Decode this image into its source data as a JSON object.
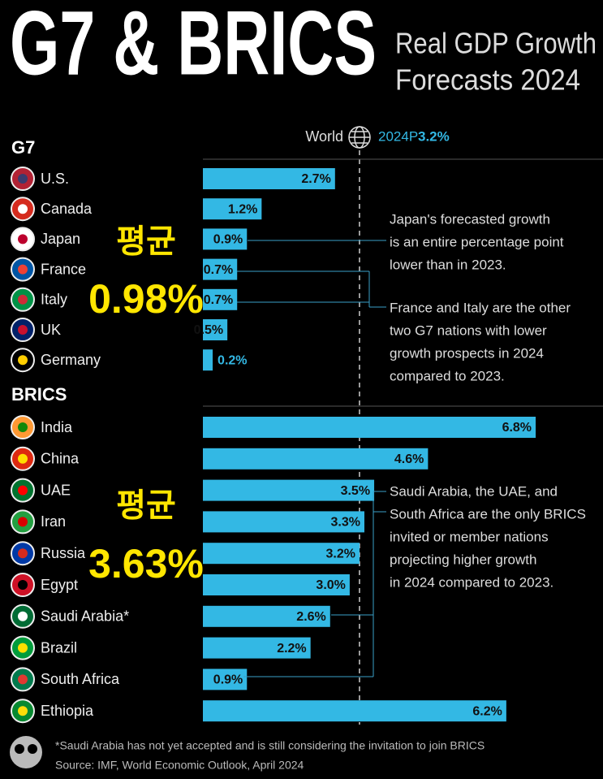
{
  "chart_data": {
    "type": "hbar",
    "title": "G7 & BRICS",
    "subtitle": [
      "Real GDP Growth",
      "Forecasts 2024"
    ],
    "color": "#33b8e4",
    "reference": {
      "name": "World",
      "label": "2024P",
      "value": 3.2,
      "value_label": "3.2%"
    },
    "groups": [
      {
        "name": "G7",
        "categories": [
          "U.S.",
          "Canada",
          "Japan",
          "France",
          "Italy",
          "UK",
          "Germany"
        ],
        "values": [
          2.7,
          1.2,
          0.9,
          0.7,
          0.7,
          0.5,
          0.2
        ],
        "value_labels": [
          "2.7%",
          "1.2%",
          "0.9%",
          "0.7%",
          "0.7%",
          "0.5%",
          "0.2%"
        ],
        "average_title": "평균",
        "average_text": "0.98%"
      },
      {
        "name": "BRICS",
        "categories": [
          "India",
          "China",
          "UAE",
          "Iran",
          "Russia",
          "Egypt",
          "Saudi Arabia*",
          "Brazil",
          "South Africa",
          "Ethiopia"
        ],
        "values": [
          6.8,
          4.6,
          3.5,
          3.3,
          3.2,
          3.0,
          2.6,
          2.2,
          0.9,
          6.2
        ],
        "value_labels": [
          "6.8%",
          "4.6%",
          "3.5%",
          "3.3%",
          "3.2%",
          "3.0%",
          "2.6%",
          "2.2%",
          "0.9%",
          "6.2%"
        ],
        "average_title": "평균",
        "average_text": "3.63%"
      }
    ],
    "annotations": [
      [
        "Japan's forecasted growth",
        "is an entire percentage point",
        "lower than in 2023."
      ],
      [
        "France and Italy are the other",
        "two G7 nations with lower",
        "growth prospects in 2024",
        "compared to 2023."
      ],
      [
        "Saudi Arabia, the UAE, and",
        "South Africa are the only BRICS",
        "invited or member nations",
        "projecting higher growth",
        "in 2024 compared to 2023."
      ]
    ],
    "footnote": "*Saudi Arabia has not yet accepted and is still considering the invitation to join BRICS",
    "source": "Source: IMF, World Economic Outlook, April 2024"
  }
}
